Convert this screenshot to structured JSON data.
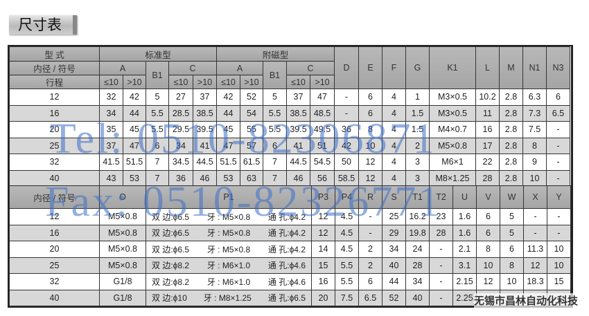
{
  "title": "尺寸表",
  "watermarks": {
    "tel": "Tel: 0510-82306871",
    "fax": "Fax: 0510-82326771",
    "company": "无锡市昌林自动化科技"
  },
  "table1": {
    "h_type": "型 式",
    "h_bore_symbol": "内径 / 符号",
    "h_stroke": "行程",
    "standard": "标准型",
    "magnetic": "附磁型",
    "A": "A",
    "B1": "B1",
    "C": "C",
    "le10": "≤10",
    "gt10": ">10",
    "cols": [
      "D",
      "E",
      "F",
      "G",
      "K1",
      "L",
      "M",
      "N1",
      "N3"
    ],
    "rows": [
      [
        "12",
        "32",
        "42",
        "5",
        "27",
        "37",
        "42",
        "52",
        "5",
        "37",
        "47",
        "-",
        "6",
        "4",
        "1",
        "M3×0.5",
        "10.2",
        "2.8",
        "6.3",
        "6"
      ],
      [
        "16",
        "34",
        "44",
        "5.5",
        "28.5",
        "38.5",
        "44",
        "54",
        "5.5",
        "38.5",
        "48.5",
        "-",
        "6",
        "4",
        "1.5",
        "M3×0.5",
        "11",
        "2.8",
        "7.3",
        "6.5"
      ],
      [
        "20",
        "35",
        "45",
        "5.5",
        "29.5",
        "39.5",
        "45",
        "55",
        "5.5",
        "39.5",
        "49.5",
        "36",
        "8",
        "4",
        "1.5",
        "M4×0.7",
        "16",
        "2.8",
        "7.5",
        "-"
      ],
      [
        "25",
        "37",
        "47",
        "6",
        "34",
        "41",
        "47",
        "57",
        "6",
        "41",
        "51",
        "42",
        "10",
        "4",
        "2",
        "M5×0.8",
        "17",
        "2.8",
        "8",
        "-"
      ],
      [
        "32",
        "41.5",
        "51.5",
        "7",
        "34.5",
        "44.5",
        "51.5",
        "61.5",
        "7",
        "44.5",
        "54.5",
        "50",
        "12",
        "4",
        "3",
        "M6×1",
        "22",
        "2.8",
        "9",
        "-"
      ],
      [
        "40",
        "43",
        "53",
        "7",
        "36",
        "46",
        "53",
        "63",
        "7",
        "46",
        "56",
        "58.5",
        "12",
        "4",
        "3",
        "M8×1.25",
        "28",
        "2.8",
        "10",
        "-"
      ]
    ]
  },
  "table2": {
    "h_bore_symbol": "内径 / 符号",
    "cols": [
      "O",
      "P1",
      "P3",
      "P4",
      "R",
      "S",
      "T1",
      "T2",
      "U",
      "V",
      "W",
      "X",
      "Y"
    ],
    "rows": [
      {
        "bore": "12",
        "O": "M5×0.8",
        "P1": [
          "双 边:ϕ6.5",
          "牙 : M5×0.8",
          "通 孔:ϕ4.2"
        ],
        "rest": [
          "12",
          "4.5",
          "-",
          "25",
          "16.2",
          "23",
          "1.6",
          "6",
          "5",
          "-",
          "-"
        ]
      },
      {
        "bore": "16",
        "O": "M5×0.8",
        "P1": [
          "双 边:ϕ6.5",
          "牙 : M5×0.8",
          "通 孔:ϕ4.2"
        ],
        "rest": [
          "12",
          "4.5",
          "-",
          "29",
          "19.8",
          "28",
          "1.6",
          "6",
          "5",
          "-",
          "-"
        ]
      },
      {
        "bore": "20",
        "O": "M5×0.8",
        "P1": [
          "双 边:ϕ6.5",
          "牙 : M5×0.8",
          "通 孔:ϕ4.2"
        ],
        "rest": [
          "14",
          "4.5",
          "2",
          "34",
          "24",
          "-",
          "2.1",
          "8",
          "6",
          "11.3",
          "10"
        ]
      },
      {
        "bore": "25",
        "O": "M5×0.8",
        "P1": [
          "双 边:ϕ8.2",
          "牙 : M6×1.0",
          "通 孔:ϕ4.6"
        ],
        "rest": [
          "15",
          "5.5",
          "2",
          "40",
          "28",
          "-",
          "3.1",
          "10",
          "8",
          "12",
          "10"
        ]
      },
      {
        "bore": "32",
        "O": "G1/8",
        "P1": [
          "双 边:ϕ8.2",
          "牙 : M6×1.0",
          "通 孔:ϕ4.6"
        ],
        "rest": [
          "16",
          "5.5",
          "6",
          "44",
          "34",
          "-",
          "2.15",
          "12",
          "10",
          "18.3",
          "15"
        ]
      },
      {
        "bore": "40",
        "O": "G1/8",
        "P1": [
          "双 边:ϕ10",
          "牙 : M8×1.25",
          "通 孔:ϕ6.5"
        ],
        "rest": [
          "20",
          "7.5",
          "6.5",
          "52",
          "40",
          "-",
          "2.25",
          "",
          "",
          "",
          ""
        ]
      }
    ]
  }
}
